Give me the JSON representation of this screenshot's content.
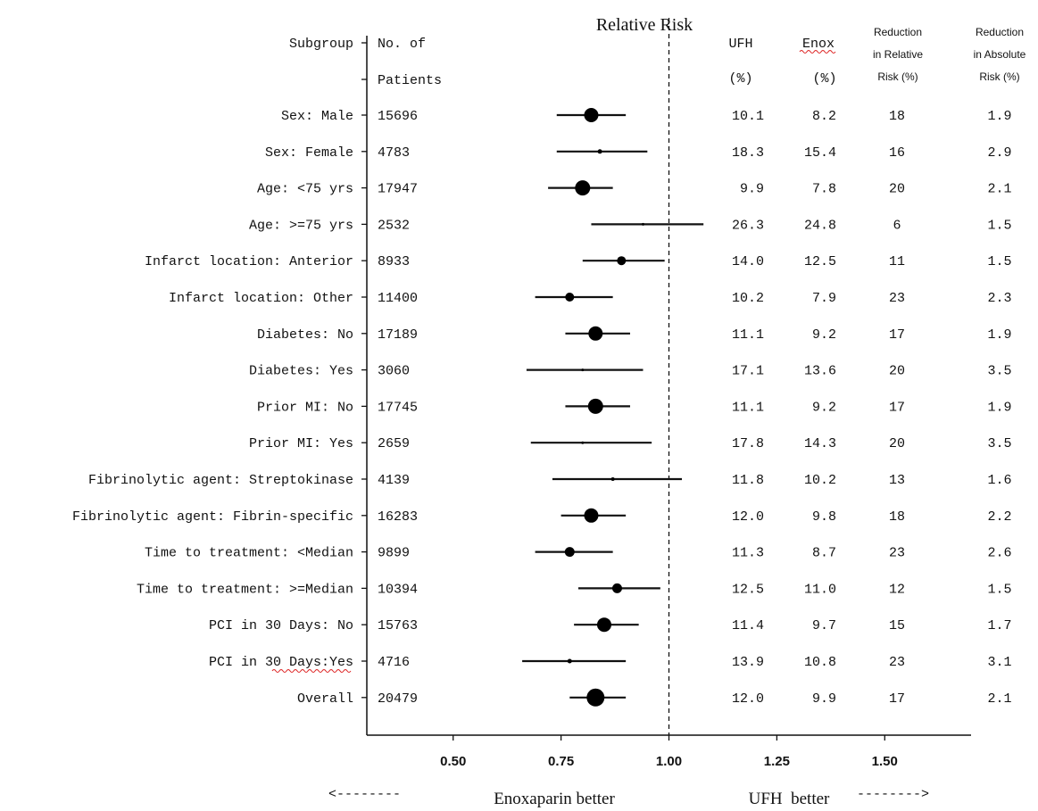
{
  "chart_data": {
    "type": "forest",
    "title": "Relative Risk",
    "columns": {
      "subgroup": "Subgroup",
      "patients": [
        "No. of",
        "Patients"
      ],
      "ufh": [
        "UFH",
        "(%)"
      ],
      "enox": [
        "Enox",
        "(%)"
      ],
      "rel_reduction": [
        "Reduction",
        "in Relative",
        "Risk (%)"
      ],
      "abs_reduction": [
        "Reduction",
        "in Absolute",
        "Risk (%)"
      ]
    },
    "xlim": [
      0.3,
      1.7
    ],
    "reference_line": 1.0,
    "x_ticks": [
      {
        "value": 0.5,
        "label": "0.50"
      },
      {
        "value": 0.75,
        "label": "0.75"
      },
      {
        "value": 1.0,
        "label": "1.00"
      },
      {
        "value": 1.25,
        "label": "1.25"
      },
      {
        "value": 1.5,
        "label": "1.50"
      }
    ],
    "left_note": "Enoxaparin better",
    "right_note": "UFH  better",
    "left_arrow": "<--------",
    "right_arrow": "-------->",
    "rows": [
      {
        "label": "Sex: Male",
        "n": "15696",
        "rr": 0.82,
        "lo": 0.74,
        "hi": 0.9,
        "size": 8,
        "ufh": "10.1",
        "enox": "8.2",
        "rel": "18",
        "abs": "1.9"
      },
      {
        "label": "Sex: Female",
        "n": "4783",
        "rr": 0.84,
        "lo": 0.74,
        "hi": 0.95,
        "size": 2.5,
        "ufh": "18.3",
        "enox": "15.4",
        "rel": "16",
        "abs": "2.9"
      },
      {
        "label": "Age: <75 yrs",
        "n": "17947",
        "rr": 0.8,
        "lo": 0.72,
        "hi": 0.87,
        "size": 8.5,
        "ufh": "9.9",
        "enox": "7.8",
        "rel": "20",
        "abs": "2.1"
      },
      {
        "label": "Age: >=75 yrs",
        "n": "2532",
        "rr": 0.94,
        "lo": 0.82,
        "hi": 1.08,
        "size": 1.5,
        "ufh": "26.3",
        "enox": "24.8",
        "rel": "6",
        "abs": "1.5"
      },
      {
        "label": "Infarct location: Anterior",
        "n": "8933",
        "rr": 0.89,
        "lo": 0.8,
        "hi": 0.99,
        "size": 5,
        "ufh": "14.0",
        "enox": "12.5",
        "rel": "11",
        "abs": "1.5"
      },
      {
        "label": "Infarct location: Other",
        "n": "11400",
        "rr": 0.77,
        "lo": 0.69,
        "hi": 0.87,
        "size": 5,
        "ufh": "10.2",
        "enox": "7.9",
        "rel": "23",
        "abs": "2.3"
      },
      {
        "label": "Diabetes: No",
        "n": "17189",
        "rr": 0.83,
        "lo": 0.76,
        "hi": 0.91,
        "size": 8,
        "ufh": "11.1",
        "enox": "9.2",
        "rel": "17",
        "abs": "1.9"
      },
      {
        "label": "Diabetes: Yes",
        "n": "3060",
        "rr": 0.8,
        "lo": 0.67,
        "hi": 0.94,
        "size": 1.5,
        "ufh": "17.1",
        "enox": "13.6",
        "rel": "20",
        "abs": "3.5"
      },
      {
        "label": "Prior MI: No",
        "n": "17745",
        "rr": 0.83,
        "lo": 0.76,
        "hi": 0.91,
        "size": 8.5,
        "ufh": "11.1",
        "enox": "9.2",
        "rel": "17",
        "abs": "1.9"
      },
      {
        "label": "Prior MI: Yes",
        "n": "2659",
        "rr": 0.8,
        "lo": 0.68,
        "hi": 0.96,
        "size": 1.5,
        "ufh": "17.8",
        "enox": "14.3",
        "rel": "20",
        "abs": "3.5"
      },
      {
        "label": "Fibrinolytic agent: Streptokinase",
        "n": "4139",
        "rr": 0.87,
        "lo": 0.73,
        "hi": 1.03,
        "size": 2,
        "ufh": "11.8",
        "enox": "10.2",
        "rel": "13",
        "abs": "1.6"
      },
      {
        "label": "Fibrinolytic agent: Fibrin-specific",
        "n": "16283",
        "rr": 0.82,
        "lo": 0.75,
        "hi": 0.9,
        "size": 8,
        "ufh": "12.0",
        "enox": "9.8",
        "rel": "18",
        "abs": "2.2"
      },
      {
        "label": "Time to treatment: <Median",
        "n": "9899",
        "rr": 0.77,
        "lo": 0.69,
        "hi": 0.87,
        "size": 5.5,
        "ufh": "11.3",
        "enox": "8.7",
        "rel": "23",
        "abs": "2.6"
      },
      {
        "label": "Time to treatment: >=Median",
        "n": "10394",
        "rr": 0.88,
        "lo": 0.79,
        "hi": 0.98,
        "size": 5.5,
        "ufh": "12.5",
        "enox": "11.0",
        "rel": "12",
        "abs": "1.5"
      },
      {
        "label": "PCI in 30 Days: No",
        "n": "15763",
        "rr": 0.85,
        "lo": 0.78,
        "hi": 0.93,
        "size": 8,
        "ufh": "11.4",
        "enox": "9.7",
        "rel": "15",
        "abs": "1.7"
      },
      {
        "label": "PCI in 30 Days:Yes",
        "n": "4716",
        "rr": 0.77,
        "lo": 0.66,
        "hi": 0.9,
        "size": 2.5,
        "ufh": "13.9",
        "enox": "10.8",
        "rel": "23",
        "abs": "3.1"
      },
      {
        "label": "Overall",
        "n": "20479",
        "rr": 0.83,
        "lo": 0.77,
        "hi": 0.9,
        "size": 10,
        "ufh": "12.0",
        "enox": "9.9",
        "rel": "17",
        "abs": "2.1"
      }
    ]
  }
}
